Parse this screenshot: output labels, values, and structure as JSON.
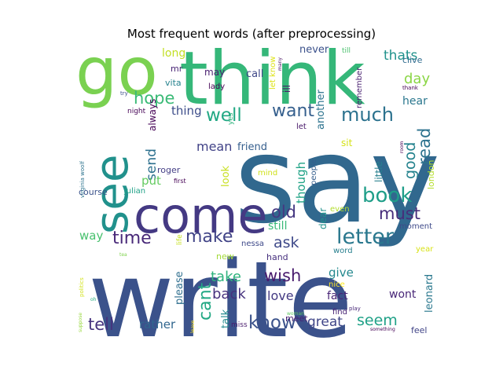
{
  "chart_data": {
    "type": "wordcloud",
    "title": "Most frequent words (after preprocessing)",
    "words": [
      {
        "text": "say",
        "weight": 100,
        "color": "#31688e"
      },
      {
        "text": "write",
        "weight": 93,
        "color": "#3b528b"
      },
      {
        "text": "think",
        "weight": 62,
        "color": "#35b779"
      },
      {
        "text": "go",
        "weight": 56,
        "color": "#7ad151"
      },
      {
        "text": "come",
        "weight": 48,
        "color": "#443983"
      },
      {
        "text": "see",
        "weight": 46,
        "color": "#21918c"
      },
      {
        "text": "letter",
        "weight": 25,
        "color": "#2a788e"
      },
      {
        "text": "book",
        "weight": 24,
        "color": "#1f9e89"
      },
      {
        "text": "much",
        "weight": 23,
        "color": "#2c728e"
      },
      {
        "text": "know",
        "weight": 22,
        "color": "#3b528b"
      },
      {
        "text": "want",
        "weight": 21,
        "color": "#355f8d"
      },
      {
        "text": "make",
        "weight": 21,
        "color": "#414487"
      },
      {
        "text": "well",
        "weight": 21,
        "color": "#22a884"
      },
      {
        "text": "cant",
        "weight": 21,
        "color": "#22a884"
      },
      {
        "text": "time",
        "weight": 20,
        "color": "#482878"
      },
      {
        "text": "old",
        "weight": 20,
        "color": "#453781"
      },
      {
        "text": "must",
        "weight": 20,
        "color": "#472d7b"
      },
      {
        "text": "read",
        "weight": 20,
        "color": "#2c728e"
      },
      {
        "text": "hope",
        "weight": 20,
        "color": "#3aba76"
      },
      {
        "text": "wish",
        "weight": 19,
        "color": "#481b6d"
      },
      {
        "text": "tell",
        "weight": 19,
        "color": "#46337e"
      },
      {
        "text": "ask",
        "weight": 18,
        "color": "#3e4989"
      },
      {
        "text": "seem",
        "weight": 18,
        "color": "#1fa187"
      },
      {
        "text": "good",
        "weight": 17,
        "color": "#25838e"
      },
      {
        "text": "day",
        "weight": 16,
        "color": "#8bd646"
      },
      {
        "text": "take",
        "weight": 16,
        "color": "#2db27d"
      },
      {
        "text": "back",
        "weight": 16,
        "color": "#46327e"
      },
      {
        "text": "thats",
        "weight": 15,
        "color": "#20928c"
      },
      {
        "text": "great",
        "weight": 15,
        "color": "#404688"
      },
      {
        "text": "send",
        "weight": 15,
        "color": "#2d708e"
      },
      {
        "text": "love",
        "weight": 14,
        "color": "#443a83"
      },
      {
        "text": "thing",
        "weight": 14,
        "color": "#3d4d8a"
      },
      {
        "text": "mean",
        "weight": 14,
        "color": "#414287"
      },
      {
        "text": "though",
        "weight": 13,
        "color": "#20a386"
      },
      {
        "text": "give",
        "weight": 13,
        "color": "#23888e"
      },
      {
        "text": "rather",
        "weight": 13,
        "color": "#31668e"
      },
      {
        "text": "put",
        "weight": 13,
        "color": "#63cb5f"
      },
      {
        "text": "fact",
        "weight": 12,
        "color": "#482576"
      },
      {
        "text": "way",
        "weight": 12,
        "color": "#48c16e"
      },
      {
        "text": "still",
        "weight": 12,
        "color": "#38b977"
      },
      {
        "text": "wont",
        "weight": 12,
        "color": "#482677"
      },
      {
        "text": "hear",
        "weight": 12,
        "color": "#2a778e"
      },
      {
        "text": "call",
        "weight": 11,
        "color": "#3f4788"
      },
      {
        "text": "leonard",
        "weight": 11,
        "color": "#2a788e"
      },
      {
        "text": "another",
        "weight": 11,
        "color": "#2c728e"
      },
      {
        "text": "long",
        "weight": 11,
        "color": "#c2df23"
      },
      {
        "text": "never",
        "weight": 11,
        "color": "#3b518b"
      },
      {
        "text": "look",
        "weight": 11,
        "color": "#c8e020"
      },
      {
        "text": "friend",
        "weight": 11,
        "color": "#355e8d"
      },
      {
        "text": "please",
        "weight": 11,
        "color": "#2e6e8e"
      },
      {
        "text": "talk",
        "weight": 11,
        "color": "#23898e"
      },
      {
        "text": "little",
        "weight": 10,
        "color": "#27808e"
      },
      {
        "text": "always",
        "weight": 10,
        "color": "#440154"
      },
      {
        "text": "ill",
        "weight": 10,
        "color": "#471365"
      },
      {
        "text": "may",
        "weight": 10,
        "color": "#481f70"
      },
      {
        "text": "sit",
        "weight": 10,
        "color": "#d5e21a"
      },
      {
        "text": "dear",
        "weight": 10,
        "color": "#20928c"
      },
      {
        "text": "course",
        "weight": 10,
        "color": "#3b528b"
      },
      {
        "text": "roger",
        "weight": 10,
        "color": "#433e85"
      },
      {
        "text": "london",
        "weight": 10,
        "color": "#b5de2b"
      },
      {
        "text": "meet",
        "weight": 10,
        "color": "#482071"
      },
      {
        "text": "mr",
        "weight": 10,
        "color": "#482475"
      },
      {
        "text": "hand",
        "weight": 10,
        "color": "#46307e"
      },
      {
        "text": "new",
        "weight": 10,
        "color": "#a2da37"
      },
      {
        "text": "vita",
        "weight": 10,
        "color": "#26828e"
      },
      {
        "text": "lady",
        "weight": 9,
        "color": "#440154"
      },
      {
        "text": "julian",
        "weight": 9,
        "color": "#1fa187"
      },
      {
        "text": "find",
        "weight": 9,
        "color": "#482374"
      },
      {
        "text": "feel",
        "weight": 9,
        "color": "#414487"
      },
      {
        "text": "nessa",
        "weight": 8,
        "color": "#3e4989"
      },
      {
        "text": "clive",
        "weight": 8,
        "color": "#2f6b8e"
      },
      {
        "text": "remember",
        "weight": 8,
        "color": "#481f70"
      },
      {
        "text": "mind",
        "weight": 8,
        "color": "#d0e11c"
      },
      {
        "text": "let know",
        "weight": 8,
        "color": "#dde318"
      },
      {
        "text": "word",
        "weight": 8,
        "color": "#277f8e"
      },
      {
        "text": "moment",
        "weight": 8,
        "color": "#3e4a89"
      },
      {
        "text": "nice",
        "weight": 8,
        "color": "#fde725"
      },
      {
        "text": "people",
        "weight": 8,
        "color": "#355f8d"
      },
      {
        "text": "year",
        "weight": 8,
        "color": "#d8e219"
      },
      {
        "text": "even",
        "weight": 8,
        "color": "#b2dd2d"
      },
      {
        "text": "let",
        "weight": 8,
        "color": "#481769"
      },
      {
        "text": "yes",
        "weight": 8,
        "color": "#2eb37c"
      },
      {
        "text": "till",
        "weight": 7,
        "color": "#4ac16d"
      },
      {
        "text": "night",
        "weight": 7,
        "color": "#440154"
      },
      {
        "text": "first",
        "weight": 6,
        "color": "#440154"
      },
      {
        "text": "life",
        "weight": 6,
        "color": "#c5e021"
      },
      {
        "text": "virginia woolf",
        "weight": 6,
        "color": "#2c738e"
      },
      {
        "text": "miss",
        "weight": 6,
        "color": "#481a6c"
      },
      {
        "text": "room",
        "weight": 5,
        "color": "#440154"
      },
      {
        "text": "politics",
        "weight": 6,
        "color": "#d2e21b"
      },
      {
        "text": "suppose",
        "weight": 6,
        "color": "#98d83e"
      },
      {
        "text": "many",
        "weight": 5,
        "color": "#470e61"
      },
      {
        "text": "thank",
        "weight": 5,
        "color": "#440154"
      },
      {
        "text": "try",
        "weight": 5,
        "color": "#3d4e8a"
      },
      {
        "text": "tea",
        "weight": 5,
        "color": "#7fd34e"
      },
      {
        "text": "play",
        "weight": 5,
        "color": "#482878"
      },
      {
        "text": "woman",
        "weight": 5,
        "color": "#5ec962"
      },
      {
        "text": "something",
        "weight": 5,
        "color": "#440154"
      },
      {
        "text": "leave",
        "weight": 5,
        "color": "#fde725"
      },
      {
        "text": "oh",
        "weight": 5,
        "color": "#29af7f"
      }
    ]
  }
}
